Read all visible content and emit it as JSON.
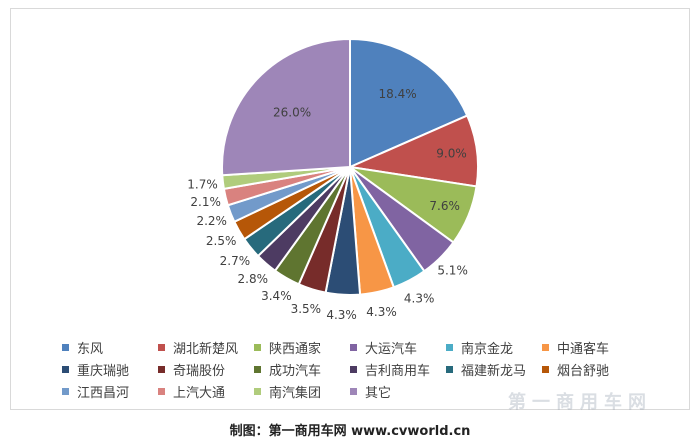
{
  "chart_data": {
    "type": "pie",
    "title": "",
    "categories": [
      "东风",
      "湖北新楚风",
      "陕西通家",
      "大运汽车",
      "南京金龙",
      "中通客车",
      "重庆瑞驰",
      "奇瑞股份",
      "成功汽车",
      "吉利商用车",
      "福建新龙马",
      "烟台舒驰",
      "江西昌河",
      "上汽大通",
      "南汽集团",
      "其它"
    ],
    "values": [
      18.4,
      9.0,
      7.6,
      5.1,
      4.3,
      4.3,
      4.3,
      3.5,
      3.4,
      2.8,
      2.7,
      2.5,
      2.2,
      2.1,
      1.7,
      26.0
    ],
    "labels": [
      "18.4%",
      "9.0%",
      "7.6%",
      "5.1%",
      "4.3%",
      "4.3%",
      "4.3%",
      "3.5%",
      "3.4%",
      "2.8%",
      "2.7%",
      "2.5%",
      "2.2%",
      "2.1%",
      "1.7%",
      "26.0%"
    ],
    "colors": [
      "#4f81bd",
      "#c0504d",
      "#9bbb59",
      "#8064a2",
      "#4bacc6",
      "#f79646",
      "#2c4d75",
      "#772c2a",
      "#5f7530",
      "#4d3b62",
      "#276a7c",
      "#b65708",
      "#729aca",
      "#d9827f",
      "#b0cc7c",
      "#9e86b8"
    ],
    "legend_position": "bottom"
  },
  "caption": "制图：第一商用车网 www.cvworld.cn",
  "watermark": "第一商用车网"
}
